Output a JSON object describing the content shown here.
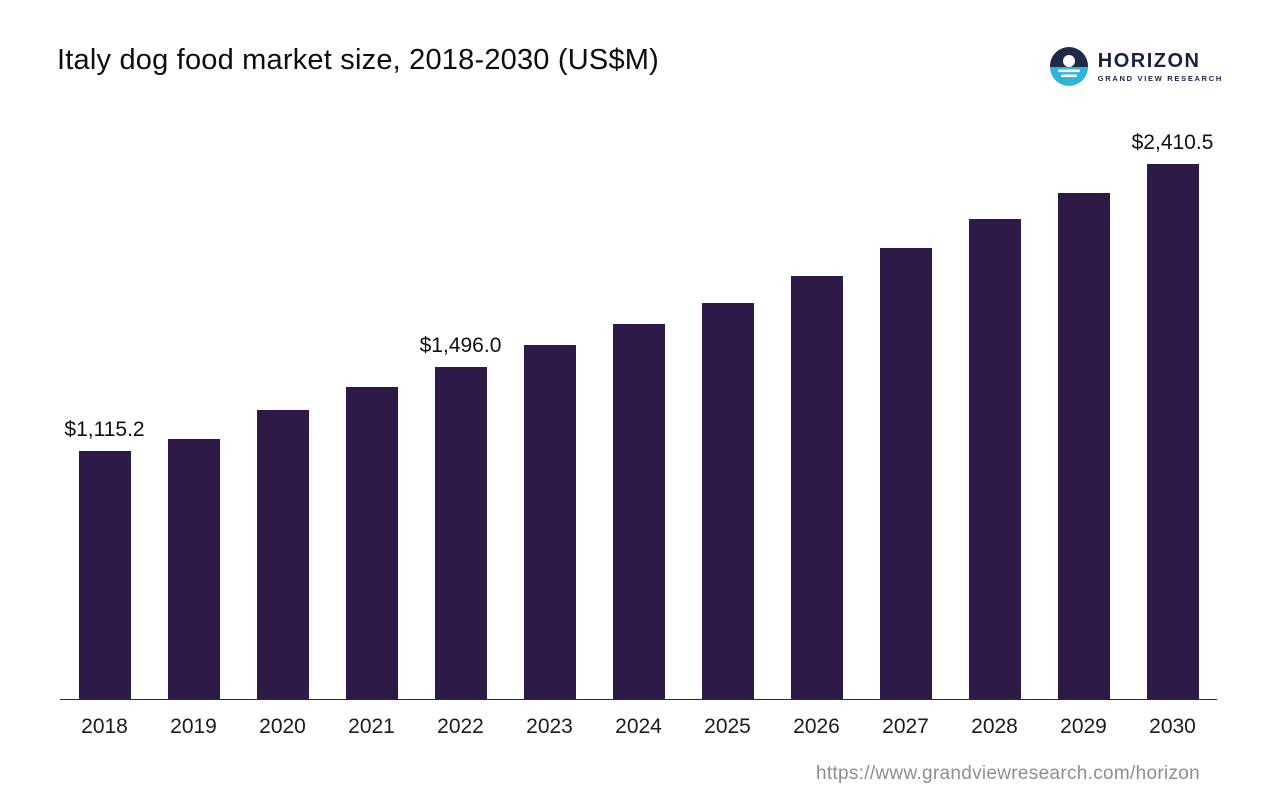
{
  "header": {
    "title": "Italy dog food market size, 2018-2030 (US$M)",
    "logo": {
      "name": "HORIZON",
      "subtitle": "GRAND VIEW RESEARCH",
      "icon": "horizon-sun-over-water-icon",
      "colors": {
        "navy": "#1e2a4a",
        "cyan": "#2fb4d9"
      }
    }
  },
  "footer": {
    "url": "https://www.grandviewresearch.com/horizon"
  },
  "chart_data": {
    "type": "bar",
    "title": "Italy dog food market size, 2018-2030 (US$M)",
    "categories": [
      "2018",
      "2019",
      "2020",
      "2021",
      "2022",
      "2023",
      "2024",
      "2025",
      "2026",
      "2027",
      "2028",
      "2029",
      "2030"
    ],
    "values": [
      1115.2,
      1170,
      1300,
      1405,
      1496.0,
      1595,
      1690,
      1785,
      1905,
      2030,
      2160,
      2280,
      2410.5
    ],
    "data_labels": [
      "$1,115.2",
      "",
      "",
      "",
      "$1,496.0",
      "",
      "",
      "",
      "",
      "",
      "",
      "",
      "$2,410.5"
    ],
    "labeled_values_exact": {
      "2018": "$1,115.2",
      "2022": "$1,496.0",
      "2030": "$2,410.5"
    },
    "bar_color": "#2d1a47",
    "xlabel": "",
    "ylabel": "",
    "ylim": [
      0,
      2500
    ],
    "grid": false,
    "legend": false,
    "y_axis_shown": false
  }
}
